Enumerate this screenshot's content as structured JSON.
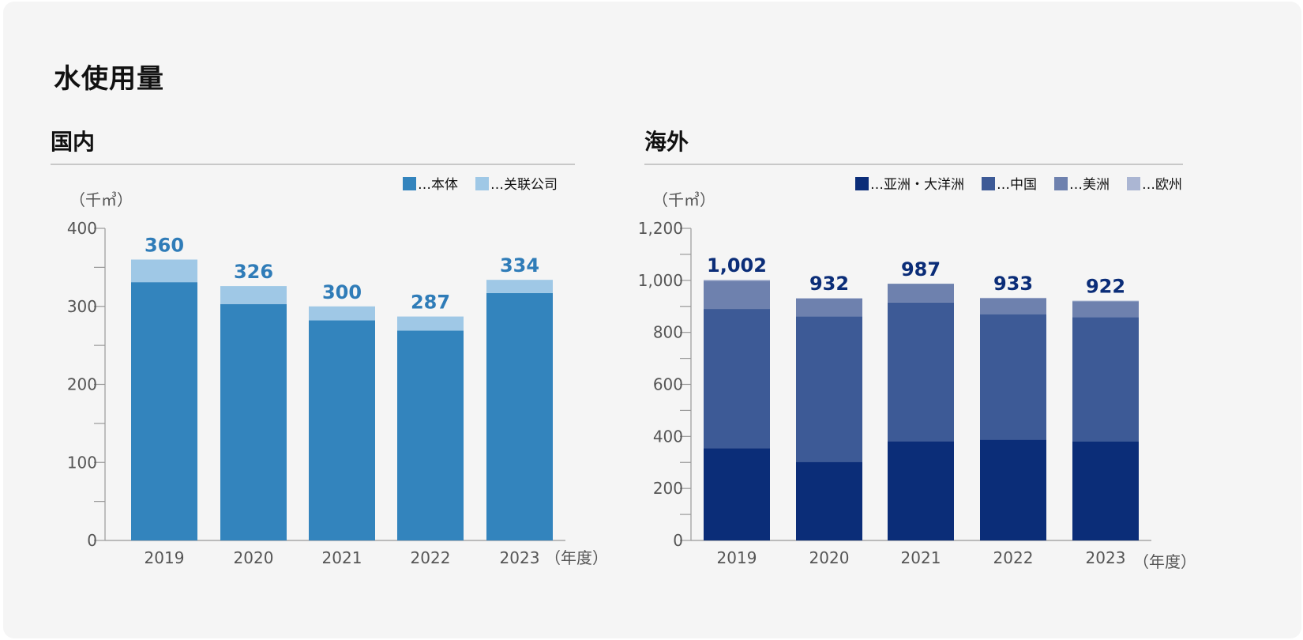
{
  "title": "水使用量",
  "chart_data": [
    {
      "type": "bar",
      "stacked": true,
      "title": "国内",
      "unit": "（千㎥）",
      "xlabel": "（年度）",
      "categories": [
        "2019",
        "2020",
        "2021",
        "2022",
        "2023"
      ],
      "series": [
        {
          "name": "…本体",
          "color": "#3384bd",
          "values": [
            331,
            303,
            282,
            269,
            317
          ]
        },
        {
          "name": "…关联公司",
          "color": "#9fc8e6",
          "values": [
            29,
            23,
            18,
            18,
            17
          ]
        }
      ],
      "totals": [
        "360",
        "326",
        "300",
        "287",
        "334"
      ],
      "totals_color": "#2f7cb8",
      "ylim": [
        0,
        400
      ],
      "yticks": [
        0,
        100,
        200,
        300,
        400
      ],
      "yticks_labels": [
        "0",
        "100",
        "200",
        "300",
        "400"
      ],
      "grid": false,
      "legend_position": "top-right"
    },
    {
      "type": "bar",
      "stacked": true,
      "title": "海外",
      "unit": "（千㎥）",
      "xlabel": "（年度）",
      "categories": [
        "2019",
        "2020",
        "2021",
        "2022",
        "2023"
      ],
      "series": [
        {
          "name": "…亚洲・大洋洲",
          "color": "#0b2d78",
          "values": [
            355,
            302,
            382,
            388,
            381
          ]
        },
        {
          "name": "…中国",
          "color": "#3d5a96",
          "values": [
            535,
            560,
            533,
            482,
            478
          ]
        },
        {
          "name": "…美洲",
          "color": "#6e81ae",
          "values": [
            108,
            68,
            72,
            61,
            60
          ]
        },
        {
          "name": "…欧州",
          "color": "#abb6d3",
          "values": [
            4,
            2,
            0,
            2,
            3
          ]
        }
      ],
      "totals": [
        "1,002",
        "932",
        "987",
        "933",
        "922"
      ],
      "totals_color": "#0b2d78",
      "ylim": [
        0,
        1200
      ],
      "yticks": [
        0,
        200,
        400,
        600,
        800,
        1000,
        1200
      ],
      "yticks_labels": [
        "0",
        "200",
        "400",
        "600",
        "800",
        "1,000",
        "1,200"
      ],
      "grid": false,
      "legend_position": "top-right"
    }
  ]
}
